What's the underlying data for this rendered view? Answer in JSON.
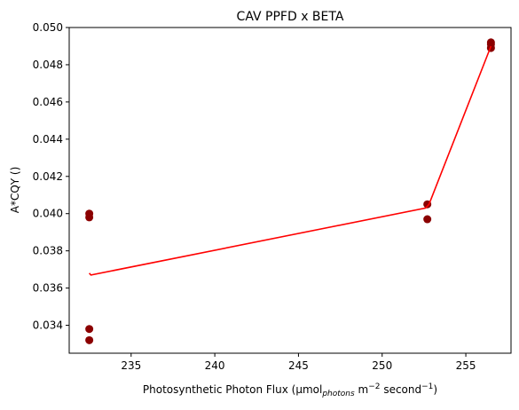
{
  "chart_data": {
    "type": "scatter",
    "title": "CAV PPFD x BETA",
    "xlabel": {
      "main": "Photosynthetic Photon Flux (μmol",
      "sub": "photons",
      "mid": " m",
      "sup1": "−2",
      "tail": " second",
      "sup2": "−1",
      "close": ")"
    },
    "ylabel": "A*CQY ()",
    "xlim": [
      231.3,
      257.7
    ],
    "ylim": [
      0.0325,
      0.05
    ],
    "xticks": [
      235,
      240,
      245,
      250,
      255
    ],
    "xtick_labels": [
      "235",
      "240",
      "245",
      "250",
      "255"
    ],
    "yticks": [
      0.034,
      0.036,
      0.038,
      0.04,
      0.042,
      0.044,
      0.046,
      0.048,
      0.05
    ],
    "ytick_labels": [
      "0.034",
      "0.036",
      "0.038",
      "0.040",
      "0.042",
      "0.044",
      "0.046",
      "0.048",
      "0.050"
    ],
    "grid": false,
    "series": [
      {
        "kind": "points",
        "color": "#8b0000",
        "points": [
          [
            232.5,
            0.04
          ],
          [
            232.5,
            0.0398
          ],
          [
            232.5,
            0.0338
          ],
          [
            232.5,
            0.0332
          ],
          [
            252.7,
            0.0405
          ],
          [
            252.7,
            0.0397
          ],
          [
            256.5,
            0.0492
          ],
          [
            256.5,
            0.0491
          ],
          [
            256.5,
            0.0489
          ]
        ]
      },
      {
        "kind": "line",
        "color": "#ff0000",
        "points": [
          [
            232.5,
            0.0368
          ],
          [
            232.6,
            0.0367
          ],
          [
            252.6,
            0.0403
          ],
          [
            252.8,
            0.0405
          ],
          [
            256.5,
            0.049
          ]
        ]
      }
    ]
  }
}
